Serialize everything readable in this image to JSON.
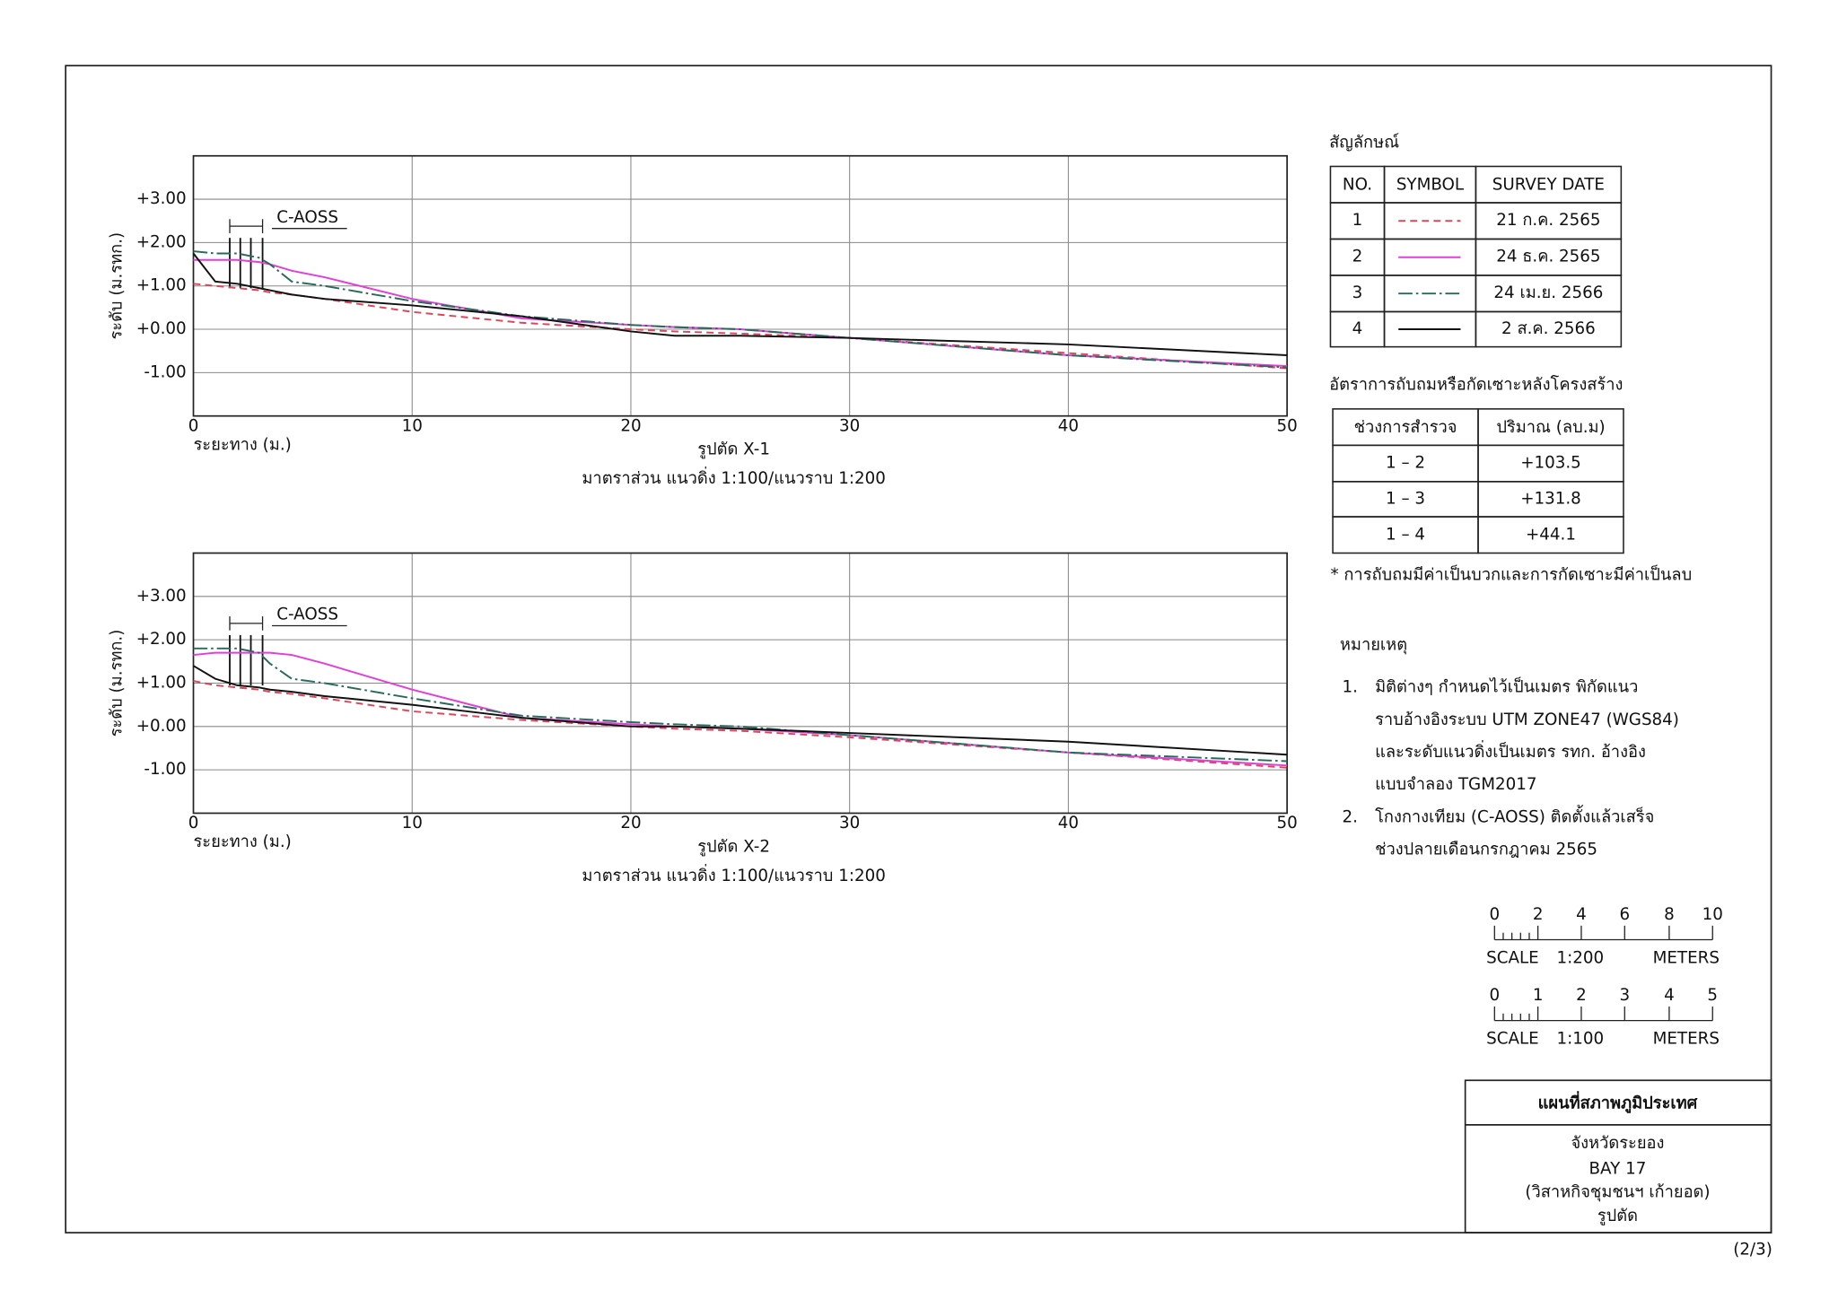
{
  "chart_data": [
    {
      "type": "line",
      "title": "รูปตัด X-1",
      "subtitle": "มาตราส่วน แนวดิ่ง 1:100/แนวราบ 1:200",
      "x_label": "ระยะทาง (ม.)",
      "y_label": "ระดับ (ม.รทก.)",
      "annotation": "C-AOSS",
      "xlim": [
        0,
        50
      ],
      "xticks": [
        0,
        10,
        20,
        30,
        40,
        50
      ],
      "ylim": [
        -2,
        4
      ],
      "yticks": [
        {
          "value": 3,
          "label": "+3.00"
        },
        {
          "value": 2,
          "label": "+2.00"
        },
        {
          "value": 1,
          "label": "+1.00"
        },
        {
          "value": 0,
          "label": "+0.00"
        },
        {
          "value": -1,
          "label": "-1.00"
        }
      ],
      "grid": true,
      "x": [
        0,
        1,
        2,
        3,
        3.5,
        4.5,
        6,
        10,
        15,
        20,
        22,
        25,
        30,
        40,
        50
      ],
      "series": [
        {
          "name": "21 ก.ค. 2565",
          "color": "#d9475a",
          "dash": "dashed",
          "values": [
            1.05,
            1.0,
            0.95,
            0.9,
            0.85,
            0.8,
            0.7,
            0.4,
            0.15,
            0.0,
            -0.05,
            -0.1,
            -0.2,
            -0.55,
            -0.9
          ]
        },
        {
          "name": "24 ธ.ค. 2565",
          "color": "#e040d8",
          "dash": "solid",
          "values": [
            1.6,
            1.6,
            1.6,
            1.55,
            1.5,
            1.35,
            1.2,
            0.7,
            0.25,
            0.1,
            0.05,
            0.0,
            -0.2,
            -0.6,
            -0.85
          ]
        },
        {
          "name": "24 เม.ย. 2566",
          "color": "#2a6a5a",
          "dash": "dashdot",
          "values": [
            1.8,
            1.75,
            1.75,
            1.65,
            1.5,
            1.1,
            1.0,
            0.65,
            0.3,
            0.1,
            0.05,
            0.0,
            -0.2,
            -0.6,
            -0.88
          ]
        },
        {
          "name": "2 ส.ค. 2566",
          "color": "#111111",
          "dash": "solid",
          "values": [
            1.75,
            1.1,
            1.05,
            0.95,
            0.9,
            0.8,
            0.7,
            0.55,
            0.3,
            -0.05,
            -0.15,
            -0.15,
            -0.2,
            -0.35,
            -0.6
          ]
        }
      ]
    },
    {
      "type": "line",
      "title": "รูปตัด X-2",
      "subtitle": "มาตราส่วน แนวดิ่ง 1:100/แนวราบ 1:200",
      "x_label": "ระยะทาง (ม.)",
      "y_label": "ระดับ (ม.รทก.)",
      "annotation": "C-AOSS",
      "xlim": [
        0,
        50
      ],
      "xticks": [
        0,
        10,
        20,
        30,
        40,
        50
      ],
      "ylim": [
        -2,
        4
      ],
      "yticks": [
        {
          "value": 3,
          "label": "+3.00"
        },
        {
          "value": 2,
          "label": "+2.00"
        },
        {
          "value": 1,
          "label": "+1.00"
        },
        {
          "value": 0,
          "label": "+0.00"
        },
        {
          "value": -1,
          "label": "-1.00"
        }
      ],
      "grid": true,
      "x": [
        0,
        1,
        2,
        3,
        3.5,
        4.5,
        6,
        10,
        15,
        20,
        22,
        25,
        30,
        40,
        50
      ],
      "series": [
        {
          "color": "#d9475a",
          "dash": "dashed",
          "values": [
            1.05,
            0.95,
            0.9,
            0.85,
            0.8,
            0.75,
            0.65,
            0.35,
            0.15,
            0.0,
            -0.05,
            -0.1,
            -0.25,
            -0.6,
            -0.95
          ]
        },
        {
          "color": "#e040d8",
          "dash": "solid",
          "values": [
            1.65,
            1.7,
            1.7,
            1.7,
            1.7,
            1.65,
            1.45,
            0.85,
            0.2,
            0.05,
            0.0,
            -0.05,
            -0.2,
            -0.6,
            -0.9
          ]
        },
        {
          "color": "#2a6a5a",
          "dash": "dashdot",
          "values": [
            1.8,
            1.8,
            1.8,
            1.7,
            1.45,
            1.1,
            1.0,
            0.65,
            0.25,
            0.1,
            0.05,
            0.0,
            -0.2,
            -0.6,
            -0.8
          ]
        },
        {
          "color": "#111111",
          "dash": "solid",
          "values": [
            1.4,
            1.1,
            0.95,
            0.9,
            0.85,
            0.8,
            0.7,
            0.5,
            0.2,
            0.0,
            0.0,
            -0.05,
            -0.15,
            -0.35,
            -0.65
          ]
        }
      ]
    }
  ],
  "legend": {
    "title": "สัญลักษณ์",
    "headers": [
      "NO.",
      "SYMBOL",
      "SURVEY DATE"
    ],
    "numbers": [
      "1",
      "2",
      "3",
      "4"
    ]
  },
  "rate_table": {
    "title": "อัตราการถับถมหรือกัดเซาะหลังโครงสร้าง",
    "headers": [
      "ช่วงการสำรวจ",
      "ปริมาณ (ลบ.ม)"
    ],
    "rows": [
      [
        "1 – 2",
        "+103.5"
      ],
      [
        "1 – 3",
        "+131.8"
      ],
      [
        "1 – 4",
        "+44.1"
      ]
    ],
    "note": "* การถับถมมีค่าเป็นบวกและการกัดเซาะมีค่าเป็นลบ"
  },
  "notes": {
    "title": "หมายเหตุ",
    "items": [
      {
        "number": "1.",
        "lines": [
          "มิติต่างๆ กำหนดไว้เป็นเมตร พิกัดแนว",
          "ราบอ้างอิงระบบ UTM ZONE47 (WGS84)",
          "และระดับแนวดิ่งเป็นเมตร รทก. อ้างอิง",
          "แบบจำลอง TGM2017"
        ]
      },
      {
        "number": "2.",
        "lines": [
          "โกงกางเทียม (C-AOSS) ติดตั้งแล้วเสร็จ",
          "ช่วงปลายเดือนกรกฎาคม 2565"
        ]
      }
    ]
  },
  "scale_bars": [
    {
      "ticks": [
        "0",
        "2",
        "4",
        "6",
        "8",
        "10"
      ],
      "label": "SCALE",
      "ratio": "1:200",
      "unit": "METERS"
    },
    {
      "ticks": [
        "0",
        "1",
        "2",
        "3",
        "4",
        "5"
      ],
      "label": "SCALE",
      "ratio": "1:100",
      "unit": "METERS"
    }
  ],
  "title_block": {
    "title": "แผนที่สภาพภูมิประเทศ",
    "lines": [
      "จังหวัดระยอง",
      "BAY 17",
      "(วิสาหกิจชุมชนฯ เก้ายอด)",
      "รูปตัด"
    ]
  },
  "page_number": "(2/3)"
}
